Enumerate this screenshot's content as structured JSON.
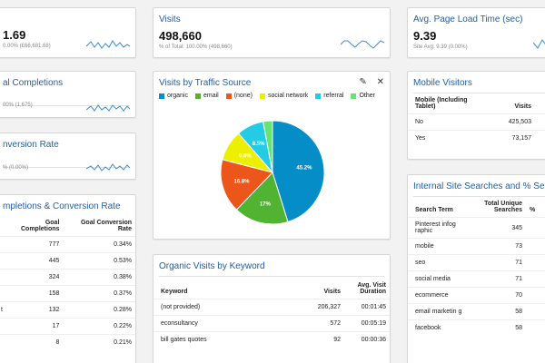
{
  "top_left": {
    "value": "1.69",
    "sub": "0.00% (£66,681.68)"
  },
  "visits": {
    "title": "Visits",
    "value": "498,660",
    "sub": "% of Total: 100.00% (498,660)"
  },
  "load_time": {
    "title": "Avg. Page Load Time (sec)",
    "value": "9.39",
    "sub": "Site Avg: 9.39 (0.00%)"
  },
  "goal_completions": {
    "title": "al Completions",
    "sub": "00% (1,675)"
  },
  "conversion_rate": {
    "title": "nversion Rate",
    "sub": "% (0.00%)"
  },
  "pletions_table": {
    "title": "mpletions & Conversion Rate",
    "headers": [
      "Goal Completions",
      "Goal Conversion Rate"
    ],
    "rows": [
      {
        "label": "",
        "completions": "777",
        "rate": "0.34%"
      },
      {
        "label": "",
        "completions": "445",
        "rate": "0.53%"
      },
      {
        "label": "",
        "completions": "324",
        "rate": "0.38%"
      },
      {
        "label": "",
        "completions": "158",
        "rate": "0.37%"
      },
      {
        "label": "t",
        "completions": "132",
        "rate": "0.28%"
      },
      {
        "label": "",
        "completions": "17",
        "rate": "0.22%"
      },
      {
        "label": "",
        "completions": "8",
        "rate": "0.21%"
      }
    ]
  },
  "traffic_source": {
    "title": "Visits by Traffic Source",
    "edit_icon": "pencil-icon",
    "close_icon": "close-icon",
    "legend": [
      {
        "name": "organic",
        "color": "#058dc7"
      },
      {
        "name": "email",
        "color": "#50b432"
      },
      {
        "name": "(none)",
        "color": "#ed561b"
      },
      {
        "name": "social network",
        "color": "#edef00"
      },
      {
        "name": "referral",
        "color": "#24cbe5"
      },
      {
        "name": "Other",
        "color": "#64e572"
      }
    ]
  },
  "chart_data": {
    "type": "pie",
    "series": [
      {
        "name": "organic",
        "value": 45.2,
        "color": "#058dc7",
        "label": "45.2%"
      },
      {
        "name": "email",
        "value": 17,
        "color": "#50b432",
        "label": "17%"
      },
      {
        "name": "(none)",
        "value": 16.8,
        "color": "#ed561b",
        "label": "16.8%"
      },
      {
        "name": "social network",
        "value": 9.6,
        "color": "#edef00",
        "label": "9.6%"
      },
      {
        "name": "referral",
        "value": 8.5,
        "color": "#24cbe5",
        "label": "8.5%"
      },
      {
        "name": "Other",
        "value": 2.9,
        "color": "#64e572",
        "label": ""
      }
    ]
  },
  "organic_keywords": {
    "title": "Organic Visits by Keyword",
    "headers": [
      "Keyword",
      "Visits",
      "Avg. Visit Duration"
    ],
    "rows": [
      {
        "keyword": "(not provided)",
        "visits": "206,327",
        "duration": "00:01:45"
      },
      {
        "keyword": "econsultancy",
        "visits": "572",
        "duration": "00:05:19"
      },
      {
        "keyword": "bill gates quotes",
        "visits": "92",
        "duration": "00:00:36"
      }
    ]
  },
  "mobile_visitors": {
    "title": "Mobile Visitors",
    "headers": [
      "Mobile (Including Tablet)",
      "Visits"
    ],
    "rows": [
      {
        "label": "No",
        "visits": "425,503"
      },
      {
        "label": "Yes",
        "visits": "73,157"
      }
    ]
  },
  "site_search": {
    "title": "Internal Site Searches and % Search",
    "headers": [
      "Search Term",
      "Total Unique Searches",
      "%"
    ],
    "rows": [
      {
        "term": "Pinterest infog raphic",
        "searches": "345"
      },
      {
        "term": "mobile",
        "searches": "73"
      },
      {
        "term": "seo",
        "searches": "71"
      },
      {
        "term": "social media",
        "searches": "71"
      },
      {
        "term": "ecommerce",
        "searches": "70"
      },
      {
        "term": "email marketin g",
        "searches": "58"
      },
      {
        "term": "facebook",
        "searches": "58"
      }
    ]
  }
}
